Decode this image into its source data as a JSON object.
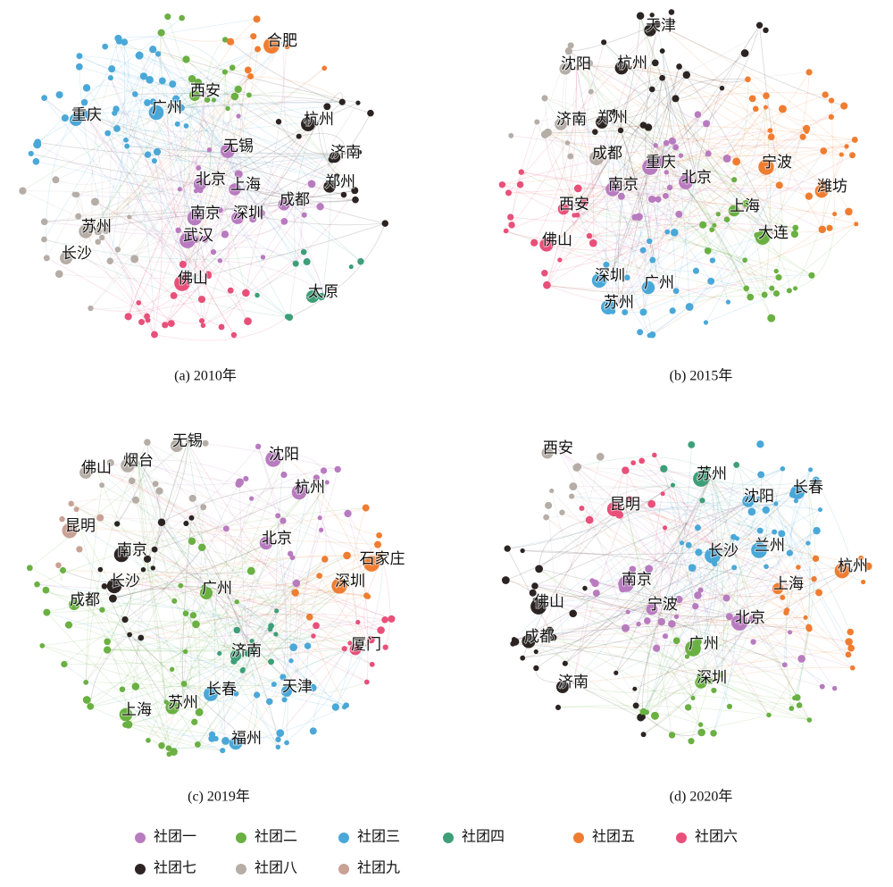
{
  "panels": [
    {
      "caption": "(a) 2010年",
      "nodes": [
        {
          "label": "合肥",
          "community": 4
        },
        {
          "label": "西安",
          "community": 1
        },
        {
          "label": "广州",
          "community": 2
        },
        {
          "label": "重庆",
          "community": 2
        },
        {
          "label": "杭州",
          "community": 6
        },
        {
          "label": "济南",
          "community": 6
        },
        {
          "label": "无锡",
          "community": 0
        },
        {
          "label": "北京",
          "community": 0
        },
        {
          "label": "上海",
          "community": 0
        },
        {
          "label": "郑州",
          "community": 6
        },
        {
          "label": "成都",
          "community": 0
        },
        {
          "label": "南京",
          "community": 0
        },
        {
          "label": "深圳",
          "community": 0
        },
        {
          "label": "苏州",
          "community": 7
        },
        {
          "label": "武汉",
          "community": 0
        },
        {
          "label": "长沙",
          "community": 7
        },
        {
          "label": "佛山",
          "community": 5
        },
        {
          "label": "太原",
          "community": 3
        }
      ]
    },
    {
      "caption": "(b) 2015年",
      "nodes": [
        {
          "label": "天津",
          "community": 6
        },
        {
          "label": "沈阳",
          "community": 7
        },
        {
          "label": "杭州",
          "community": 6
        },
        {
          "label": "济南",
          "community": 7
        },
        {
          "label": "郑州",
          "community": 6
        },
        {
          "label": "成都",
          "community": 7
        },
        {
          "label": "重庆",
          "community": 0
        },
        {
          "label": "宁波",
          "community": 4
        },
        {
          "label": "北京",
          "community": 0
        },
        {
          "label": "南京",
          "community": 0
        },
        {
          "label": "潍坊",
          "community": 4
        },
        {
          "label": "西安",
          "community": 5
        },
        {
          "label": "上海",
          "community": 1
        },
        {
          "label": "大连",
          "community": 1
        },
        {
          "label": "佛山",
          "community": 5
        },
        {
          "label": "深圳",
          "community": 2
        },
        {
          "label": "广州",
          "community": 2
        },
        {
          "label": "苏州",
          "community": 2
        }
      ]
    },
    {
      "caption": "(c) 2019年",
      "nodes": [
        {
          "label": "无锡",
          "community": 7
        },
        {
          "label": "沈阳",
          "community": 0
        },
        {
          "label": "佛山",
          "community": 7
        },
        {
          "label": "烟台",
          "community": 7
        },
        {
          "label": "杭州",
          "community": 0
        },
        {
          "label": "昆明",
          "community": 8
        },
        {
          "label": "北京",
          "community": 0
        },
        {
          "label": "南京",
          "community": 6
        },
        {
          "label": "石家庄",
          "community": 4
        },
        {
          "label": "长沙",
          "community": 6
        },
        {
          "label": "深圳",
          "community": 4
        },
        {
          "label": "广州",
          "community": 1
        },
        {
          "label": "成都",
          "community": 1
        },
        {
          "label": "济南",
          "community": 3
        },
        {
          "label": "厦门",
          "community": 5
        },
        {
          "label": "长春",
          "community": 2
        },
        {
          "label": "天津",
          "community": 2
        },
        {
          "label": "上海",
          "community": 1
        },
        {
          "label": "苏州",
          "community": 1
        },
        {
          "label": "福州",
          "community": 2
        }
      ]
    },
    {
      "caption": "(d) 2020年",
      "nodes": [
        {
          "label": "西安",
          "community": 7
        },
        {
          "label": "苏州",
          "community": 3
        },
        {
          "label": "长春",
          "community": 2
        },
        {
          "label": "沈阳",
          "community": 2
        },
        {
          "label": "昆明",
          "community": 5
        },
        {
          "label": "兰州",
          "community": 2
        },
        {
          "label": "长沙",
          "community": 2
        },
        {
          "label": "杭州",
          "community": 4
        },
        {
          "label": "南京",
          "community": 0
        },
        {
          "label": "上海",
          "community": 4
        },
        {
          "label": "佛山",
          "community": 6
        },
        {
          "label": "宁波",
          "community": 0
        },
        {
          "label": "北京",
          "community": 0
        },
        {
          "label": "成都",
          "community": 6
        },
        {
          "label": "广州",
          "community": 1
        },
        {
          "label": "深圳",
          "community": 1
        },
        {
          "label": "济南",
          "community": 6
        }
      ]
    }
  ],
  "legend": [
    {
      "label": "社团一",
      "color": "#b87bbf"
    },
    {
      "label": "社团二",
      "color": "#6ab042"
    },
    {
      "label": "社团三",
      "color": "#4aa8d8"
    },
    {
      "label": "社团四",
      "color": "#3d9f78"
    },
    {
      "label": "社团五",
      "color": "#ef7d31"
    },
    {
      "label": "社团六",
      "color": "#e8507a"
    },
    {
      "label": "社团七",
      "color": "#2b2422"
    },
    {
      "label": "社团八",
      "color": "#b5ada6"
    },
    {
      "label": "社团九",
      "color": "#c9a195"
    }
  ]
}
